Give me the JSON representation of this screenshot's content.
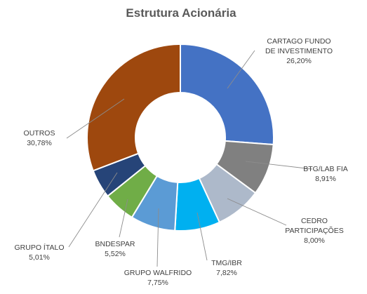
{
  "chart_data": {
    "type": "pie",
    "donut": true,
    "title": "Estrutura Acionária",
    "slices": [
      {
        "label_lines": [
          "CARTAGO FUNDO",
          "DE INVESTIMENTO"
        ],
        "percent_text": "26,20%",
        "value": 26.2,
        "color": "#4472C4"
      },
      {
        "label_lines": [
          "BTG/LAB FIA"
        ],
        "percent_text": "8,91%",
        "value": 8.91,
        "color": "#808080"
      },
      {
        "label_lines": [
          "CEDRO",
          "PARTICIPAÇÕES"
        ],
        "percent_text": "8,00%",
        "value": 8.0,
        "color": "#ADB9CA"
      },
      {
        "label_lines": [
          "TMG/IBR"
        ],
        "percent_text": "7,82%",
        "value": 7.82,
        "color": "#00B0F0"
      },
      {
        "label_lines": [
          "GRUPO WALFRIDO"
        ],
        "percent_text": "7,75%",
        "value": 7.75,
        "color": "#5B9BD5"
      },
      {
        "label_lines": [
          "BNDESPAR"
        ],
        "percent_text": "5,52%",
        "value": 5.52,
        "color": "#70AD47"
      },
      {
        "label_lines": [
          "GRUPO ÍTALO"
        ],
        "percent_text": "5,01%",
        "value": 5.01,
        "color": "#264478"
      },
      {
        "label_lines": [
          "OUTROS"
        ],
        "percent_text": "30,78%",
        "value": 30.78,
        "color": "#9E480E"
      }
    ],
    "legend": "none"
  }
}
